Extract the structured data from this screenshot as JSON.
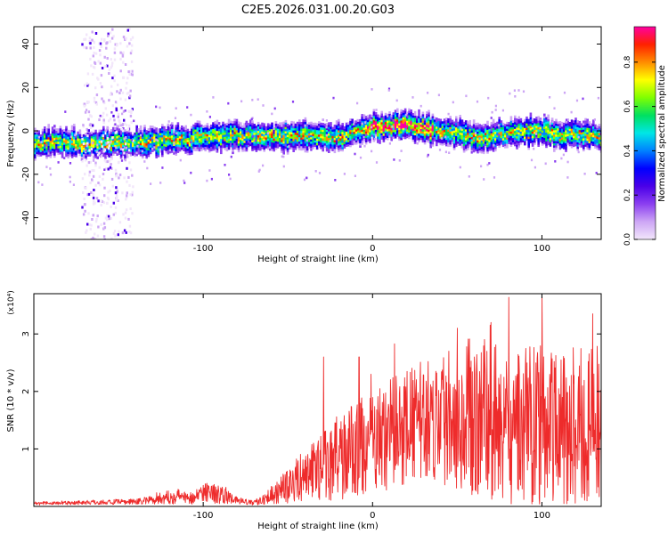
{
  "title": "C2E5.2026.031.00.20.G03",
  "colors": {
    "snr_line": "#ee2b2b",
    "axis": "#000000",
    "background": "#ffffff",
    "colormap": [
      "#f2e6fb",
      "#cda6f5",
      "#8b3ff0",
      "#4a00e8",
      "#0000ff",
      "#0082ff",
      "#00e6e6",
      "#00e060",
      "#80ff00",
      "#ffff00",
      "#ff8c00",
      "#ff2000",
      "#ff00a0"
    ]
  },
  "chart_data": [
    {
      "type": "heatmap",
      "name": "spectrogram",
      "xlabel": "Height of straight line (km)",
      "ylabel": "Frequency (Hz)",
      "xlim": [
        -200,
        135
      ],
      "ylim": [
        -50,
        48
      ],
      "xticks": [
        -100,
        0,
        100
      ],
      "yticks": [
        -40,
        -20,
        0,
        20,
        40
      ],
      "xtick_labels": [
        "-100",
        "0",
        "100"
      ],
      "ytick_labels": [
        "-40",
        "-20",
        "0",
        "20",
        "40"
      ],
      "band_center_hz": [
        [
          -200,
          -5
        ],
        [
          -170,
          -6
        ],
        [
          -140,
          -5
        ],
        [
          -110,
          -4
        ],
        [
          -100,
          -3
        ],
        [
          -80,
          -2
        ],
        [
          -60,
          -3
        ],
        [
          -40,
          -2
        ],
        [
          -20,
          -3
        ],
        [
          0,
          2
        ],
        [
          10,
          2
        ],
        [
          20,
          3
        ],
        [
          30,
          1
        ],
        [
          40,
          0
        ],
        [
          50,
          -1
        ],
        [
          60,
          -3
        ],
        [
          70,
          -2
        ],
        [
          80,
          -1
        ],
        [
          90,
          0
        ],
        [
          100,
          0
        ],
        [
          110,
          -2
        ],
        [
          120,
          -1
        ],
        [
          130,
          -2
        ],
        [
          135,
          -3
        ]
      ],
      "band_halfwidth_hz": 5,
      "colorbar": {
        "label": "Normalized spectral amplitude",
        "range": [
          0.0,
          0.96
        ],
        "ticks": [
          0.0,
          0.2,
          0.4,
          0.6,
          0.8
        ],
        "tick_labels": [
          "0.0",
          "0.2",
          "0.4",
          "0.6",
          "0.8"
        ]
      }
    },
    {
      "type": "line",
      "name": "snr",
      "xlabel": "Height of straight line (km)",
      "ylabel": "SNR (10 * v/v)",
      "y_scale_label": "(x10⁴)",
      "xlim": [
        -200,
        135
      ],
      "ylim": [
        0,
        3.7
      ],
      "xticks": [
        -100,
        0,
        100
      ],
      "yticks": [
        1,
        2,
        3
      ],
      "xtick_labels": [
        "-100",
        "0",
        "100"
      ],
      "ytick_labels": [
        "1",
        "2",
        "3"
      ],
      "envelope": {
        "x": [
          -200,
          -170,
          -140,
          -125,
          -115,
          -105,
          -100,
          -90,
          -80,
          -70,
          -60,
          -50,
          -40,
          -30,
          -20,
          -10,
          0,
          10,
          20,
          30,
          40,
          50,
          60,
          70,
          80,
          90,
          100,
          110,
          120,
          135
        ],
        "mean": [
          0.05,
          0.07,
          0.08,
          0.14,
          0.18,
          0.14,
          0.28,
          0.2,
          0.1,
          0.06,
          0.2,
          0.35,
          0.55,
          0.7,
          0.85,
          1.0,
          1.1,
          1.25,
          1.4,
          1.5,
          1.55,
          1.6,
          1.55,
          1.5,
          1.45,
          1.4,
          1.45,
          1.35,
          1.4,
          1.4
        ],
        "spread": [
          0.03,
          0.04,
          0.05,
          0.1,
          0.14,
          0.1,
          0.2,
          0.16,
          0.06,
          0.04,
          0.16,
          0.3,
          0.45,
          0.6,
          0.75,
          0.85,
          0.9,
          0.95,
          1.0,
          1.05,
          1.15,
          1.3,
          1.4,
          1.45,
          1.45,
          1.45,
          1.5,
          1.45,
          1.4,
          1.4
        ]
      },
      "peaks": [
        [
          -1,
          2.3
        ],
        [
          -8,
          2.6
        ],
        [
          45,
          2.7
        ],
        [
          50,
          3.1
        ],
        [
          70,
          3.2
        ],
        [
          100,
          3.65
        ],
        [
          130,
          3.35
        ],
        [
          -29,
          2.6
        ]
      ]
    }
  ]
}
